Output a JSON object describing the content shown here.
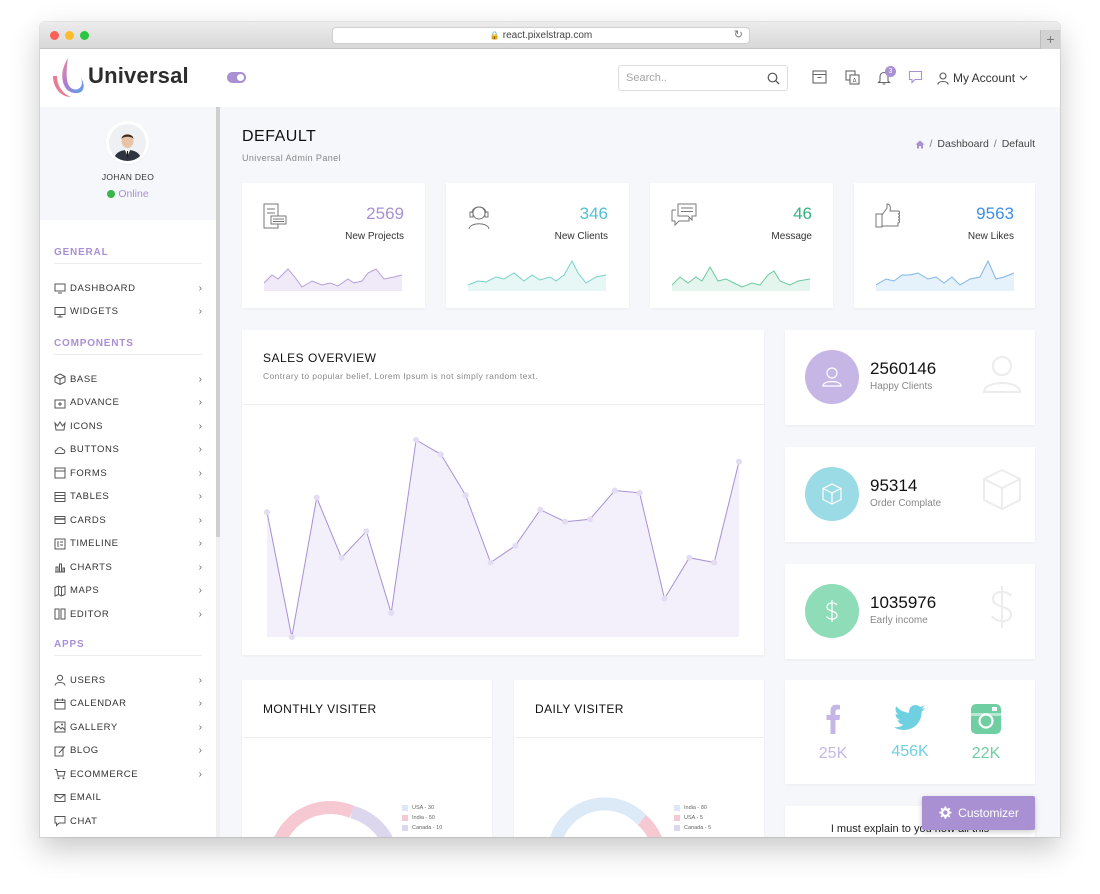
{
  "browser": {
    "url": "react.pixelstrap.com",
    "new_tab": "+"
  },
  "header": {
    "brand": "Universal",
    "search_placeholder": "Search..",
    "notification_count": "3",
    "account_label": "My Account"
  },
  "profile": {
    "name": "JOHAN DEO",
    "status": "Online"
  },
  "sidebar": {
    "sections": [
      {
        "title": "GENERAL",
        "items": [
          {
            "label": "DASHBOARD",
            "icon": "monitor-icon",
            "arrow": true
          },
          {
            "label": "WIDGETS",
            "icon": "desktop-icon",
            "arrow": true
          }
        ]
      },
      {
        "title": "COMPONENTS",
        "items": [
          {
            "label": "BASE",
            "icon": "box-icon",
            "arrow": true
          },
          {
            "label": "ADVANCE",
            "icon": "package-plus-icon",
            "arrow": true
          },
          {
            "label": "ICONS",
            "icon": "crown-icon",
            "arrow": true
          },
          {
            "label": "BUTTONS",
            "icon": "cloud-icon",
            "arrow": true
          },
          {
            "label": "FORMS",
            "icon": "form-icon",
            "arrow": true
          },
          {
            "label": "TABLES",
            "icon": "table-icon",
            "arrow": true
          },
          {
            "label": "CARDS",
            "icon": "card-icon",
            "arrow": true
          },
          {
            "label": "TIMELINE",
            "icon": "timeline-icon",
            "arrow": true
          },
          {
            "label": "CHARTS",
            "icon": "bar-chart-icon",
            "arrow": true
          },
          {
            "label": "MAPS",
            "icon": "map-icon",
            "arrow": true
          },
          {
            "label": "EDITOR",
            "icon": "editor-icon",
            "arrow": true
          }
        ]
      },
      {
        "title": "APPS",
        "items": [
          {
            "label": "USERS",
            "icon": "user-icon",
            "arrow": true
          },
          {
            "label": "CALENDAR",
            "icon": "calendar-icon",
            "arrow": true
          },
          {
            "label": "GALLERY",
            "icon": "gallery-icon",
            "arrow": true
          },
          {
            "label": "BLOG",
            "icon": "pencil-icon",
            "arrow": true
          },
          {
            "label": "ECOMMERCE",
            "icon": "cart-icon",
            "arrow": true
          },
          {
            "label": "EMAIL",
            "icon": "mail-icon",
            "arrow": false
          },
          {
            "label": "CHAT",
            "icon": "chat-icon",
            "arrow": false
          }
        ]
      }
    ]
  },
  "page": {
    "title": "DEFAULT",
    "subtitle": "Universal Admin Panel",
    "breadcrumb": [
      "Dashboard",
      "Default"
    ]
  },
  "stats": [
    {
      "value": "2569",
      "label": "New Projects",
      "color": "#a890d3",
      "icon": "document-icon"
    },
    {
      "value": "346",
      "label": "New Clients",
      "color": "#4fc1d6",
      "icon": "support-agent-icon"
    },
    {
      "value": "46",
      "label": "Message",
      "color": "#35b27b",
      "icon": "chat-bubbles-icon"
    },
    {
      "value": "9563",
      "label": "New Likes",
      "color": "#3d8fe6",
      "icon": "thumbs-up-icon"
    }
  ],
  "sales": {
    "title": "SALES OVERVIEW",
    "subtitle": "Contrary to popular belief, Lorem Ipsum is not simply random text."
  },
  "chart_data": {
    "type": "area",
    "title": "SALES OVERVIEW",
    "xlabel": "",
    "ylabel": "",
    "grid": false,
    "values": [
      52,
      0,
      58,
      33,
      44,
      10,
      82,
      76,
      59,
      31,
      38,
      53,
      48,
      49,
      61,
      60,
      16,
      33,
      31,
      73
    ]
  },
  "big_stats": [
    {
      "value": "2560146",
      "label": "Happy Clients",
      "color": "#c6b6e6",
      "icon": "user-icon"
    },
    {
      "value": "95314",
      "label": "Order Complate",
      "color": "#9bdbe5",
      "icon": "box-icon"
    },
    {
      "value": "1035976",
      "label": "Early income",
      "color": "#8fdcb8",
      "icon": "dollar-icon"
    }
  ],
  "monthly": {
    "title": "MONTHLY VISITER",
    "legend": [
      {
        "label": "USA - 30",
        "color": "#dce9f7"
      },
      {
        "label": "India - 50",
        "color": "#f5c8d2"
      },
      {
        "label": "Canada - 10",
        "color": "#ddd6ef"
      }
    ]
  },
  "daily": {
    "title": "DAILY VISITER",
    "legend": [
      {
        "label": "India - 80",
        "color": "#dce9f7"
      },
      {
        "label": "USA - 5",
        "color": "#f5c8d2"
      },
      {
        "label": "Canada - 5",
        "color": "#ddd6ef"
      }
    ]
  },
  "social": [
    {
      "value": "25K",
      "color": "#c6b6e6",
      "icon": "facebook-icon"
    },
    {
      "value": "456K",
      "color": "#6fd0e2",
      "icon": "twitter-icon"
    },
    {
      "value": "22K",
      "color": "#6fcfa3",
      "icon": "instagram-icon"
    }
  ],
  "quote": "I must explain to you how all this",
  "customizer": "Customizer"
}
